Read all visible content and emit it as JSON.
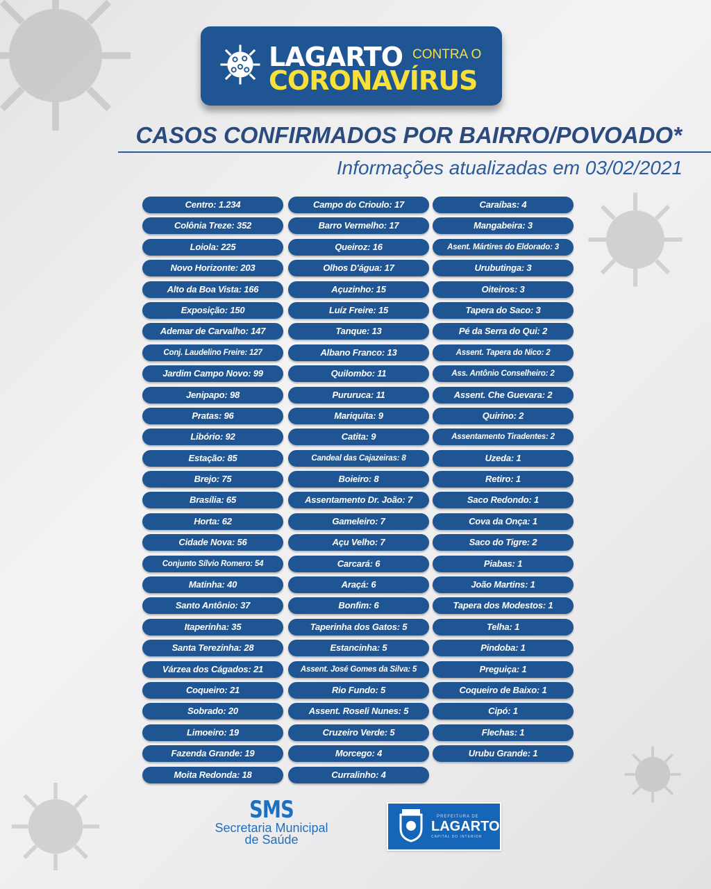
{
  "header": {
    "brand_line1": "LAGARTO",
    "brand_small": "CONTRA O",
    "brand_line2": "CORONAVÍRUS",
    "icon": "virus-icon"
  },
  "title": "CASOS CONFIRMADOS  POR BAIRRO/POVOADO*",
  "subtitle": "Informações atualizadas em 03/02/2021",
  "colors": {
    "pill": "#1f5592",
    "title": "#2b4a7e",
    "accent_yellow": "#f8e03a"
  },
  "columns": [
    [
      "Centro: 1.234",
      "Colônia Treze: 352",
      "Loiola: 225",
      "Novo Horizonte: 203",
      "Alto da Boa Vista: 166",
      "Exposição: 150",
      "Ademar de Carvalho: 147",
      "Conj. Laudelino Freire: 127",
      "Jardim Campo Novo: 99",
      "Jenipapo: 98",
      "Pratas: 96",
      "Libório: 92",
      "Estação: 85",
      "Brejo: 75",
      "Brasília: 65",
      "Horta: 62",
      "Cidade Nova: 56",
      "Conjunto Sílvio Romero: 54",
      "Matinha: 40",
      "Santo Antônio: 37",
      "Itaperinha: 35",
      "Santa Terezinha: 28",
      "Várzea dos Cágados: 21",
      "Coqueiro: 21",
      "Sobrado: 20",
      "Limoeiro: 19",
      "Fazenda Grande: 19",
      "Moita Redonda: 18"
    ],
    [
      "Campo do Crioulo: 17",
      "Barro Vermelho: 17",
      "Queiroz: 16",
      "Olhos D'água: 17",
      "Açuzinho: 15",
      "Luíz Freire: 15",
      "Tanque: 13",
      "Albano Franco: 13",
      "Quilombo: 11",
      "Pururuca: 11",
      "Mariquita: 9",
      "Catita: 9",
      "Candeal das Cajazeiras: 8",
      "Boieiro: 8",
      "Assentamento Dr. João: 7",
      "Gameleiro: 7",
      "Açu Velho: 7",
      "Carcará: 6",
      "Araçá: 6",
      "Bonfim: 6",
      "Taperinha dos Gatos: 5",
      "Estancinha: 5",
      "Assent. José Gomes da Silva: 5",
      "Rio Fundo: 5",
      "Assent. Roseli Nunes: 5",
      "Cruzeiro Verde: 5",
      "Morcego: 4",
      "Curralinho: 4"
    ],
    [
      "Caraíbas: 4",
      "Mangabeira: 3",
      "Asent. Mártires do Eldorado: 3",
      "Urubutinga: 3",
      "Oiteiros: 3",
      "Tapera do Saco: 3",
      "Pé da Serra do Qui: 2",
      "Assent. Tapera do Nico: 2",
      "Ass. Antônio Conselheiro: 2",
      "Assent. Che Guevara: 2",
      "Quirino: 2",
      "Assentamento Tiradentes: 2",
      "Uzeda: 1",
      "Retiro: 1",
      "Saco Redondo: 1",
      "Cova da Onça: 1",
      "Saco do Tigre: 2",
      "Piabas: 1",
      "João Martins: 1",
      "Tapera dos Modestos: 1",
      "Telha: 1",
      "Pindoba: 1",
      "Preguiça: 1",
      "Coqueiro de Baixo: 1",
      "Cipó: 1",
      "Flechas: 1",
      "Urubu Grande: 1"
    ]
  ],
  "footer": {
    "sms_title": "SMS",
    "sms_line1": "Secretaria Municipal",
    "sms_line2": "de Saúde",
    "pref_small": "PREFEITURA DE",
    "pref_name": "LAGARTO",
    "pref_tagline": "CAPITAL DO INTERIOR"
  }
}
